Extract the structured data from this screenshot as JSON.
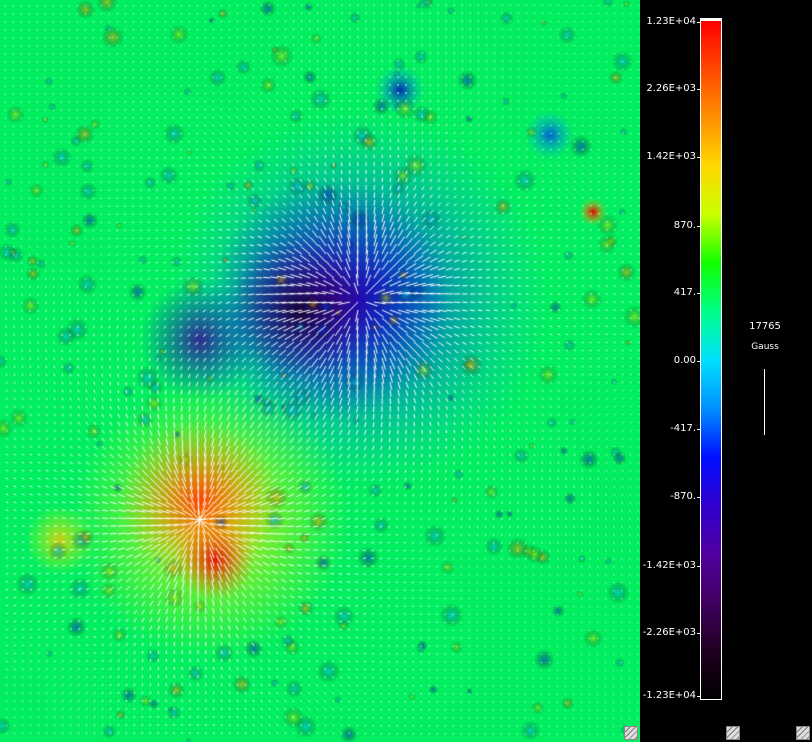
{
  "colorbar": {
    "labels": [
      "1.23E+04",
      "2.26E+03",
      "1.42E+03",
      "870.",
      "417.",
      "0.00",
      "-417.",
      "-870.",
      "-1.42E+03",
      "-2.26E+03",
      "-1.23E+04"
    ],
    "colors": [
      "#ff0000",
      "#ff4800",
      "#ff9000",
      "#ffd800",
      "#c8ff00",
      "#10ff00",
      "#00ff88",
      "#00e0ff",
      "#0090ff",
      "#0010ff",
      "#3000d0",
      "#5000a0",
      "#400060",
      "#200020",
      "#000000"
    ]
  },
  "scale": {
    "value": "17765",
    "unit": "Gauss"
  },
  "map": {
    "background_color": "#00ee60",
    "arrow_color": "#ffffff",
    "negative_region_color": "#2200aa",
    "positive_region_color": "#ff2000"
  },
  "icons": {
    "resize_handle": "resize-grip-icon"
  }
}
